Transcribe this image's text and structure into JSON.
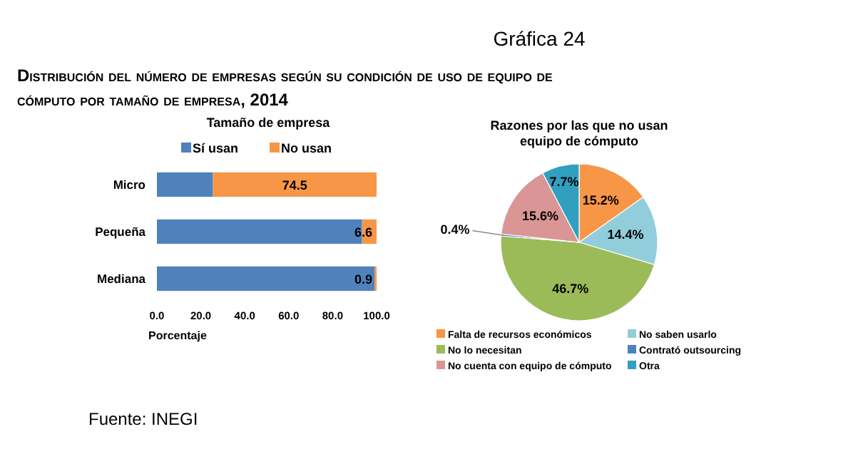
{
  "chart_data": [
    {
      "type": "other",
      "title": "Gráfica 24",
      "subtitle": "Distribución del número de empresas según su condición de uso de equipo de cómputo por tamaño de empresa, 2014",
      "annotations": [
        "Fuente: INEGI"
      ]
    },
    {
      "type": "bar",
      "orientation": "horizontal",
      "stacked": true,
      "title": "Tamaño de empresa",
      "xlabel": "Porcentaje",
      "categories": [
        "Micro",
        "Pequeña",
        "Mediana"
      ],
      "series": [
        {
          "name": "Sí usan",
          "color": "#4f81bd",
          "values": [
            25.5,
            93.4,
            99.1
          ]
        },
        {
          "name": "No usan",
          "color": "#f79646",
          "values": [
            74.5,
            6.6,
            0.9
          ],
          "value_labels": [
            "74.5",
            "6.6",
            "0.9"
          ]
        }
      ],
      "xlim": [
        0,
        100
      ],
      "xticks": [
        {
          "value": 0,
          "label": "0.0"
        },
        {
          "value": 20,
          "label": "20.0"
        },
        {
          "value": 40,
          "label": "40.0"
        },
        {
          "value": 60,
          "label": "60.0"
        },
        {
          "value": 80,
          "label": "80.0"
        },
        {
          "value": 100,
          "label": "100.0"
        }
      ],
      "legend": "top"
    },
    {
      "type": "pie",
      "title": "Razones por las que no usan equipo de cómputo",
      "categories": [
        "Falta de recursos económicos",
        "No saben usarlo",
        "No lo necesitan",
        "Contrató outsourcing",
        "No cuenta con equipo de cómputo",
        "Otra"
      ],
      "values": [
        15.2,
        14.4,
        46.7,
        0.4,
        15.6,
        7.7
      ],
      "colors": [
        "#f79646",
        "#92cddc",
        "#9bbb59",
        "#4f81bd",
        "#d99694",
        "#31a0c0"
      ],
      "value_labels": [
        "15.2%",
        "14.4%",
        "46.7%",
        "0.4%",
        "15.6%",
        "7.7%"
      ],
      "legend": "bottom"
    }
  ]
}
